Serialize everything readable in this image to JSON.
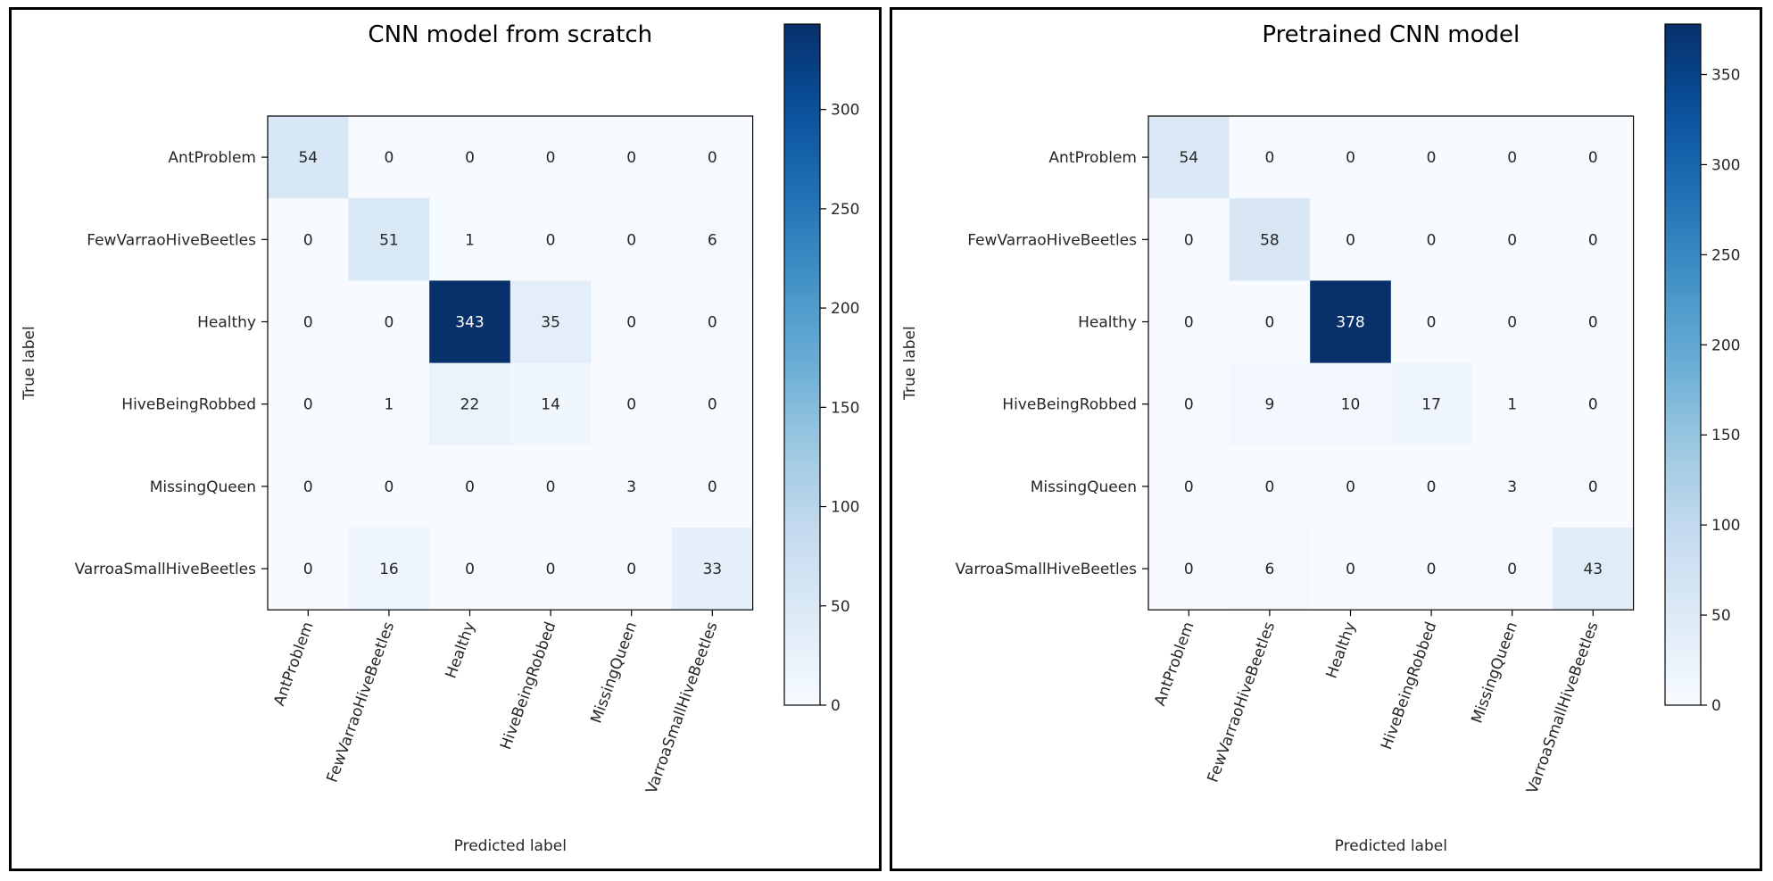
{
  "chart_data": [
    {
      "type": "heatmap",
      "title": "CNN model from scratch",
      "xlabel": "Predicted label",
      "ylabel": "True label",
      "x_categories": [
        "AntProblem",
        "FewVarraoHiveBeetles",
        "Healthy",
        "HiveBeingRobbed",
        "MissingQueen",
        "VarroaSmallHiveBeetles"
      ],
      "y_categories": [
        "AntProblem",
        "FewVarraoHiveBeetles",
        "Healthy",
        "HiveBeingRobbed",
        "MissingQueen",
        "VarroaSmallHiveBeetles"
      ],
      "values": [
        [
          54,
          0,
          0,
          0,
          0,
          0
        ],
        [
          0,
          51,
          1,
          0,
          0,
          6
        ],
        [
          0,
          0,
          343,
          35,
          0,
          0
        ],
        [
          0,
          1,
          22,
          14,
          0,
          0
        ],
        [
          0,
          0,
          0,
          0,
          3,
          0
        ],
        [
          0,
          16,
          0,
          0,
          0,
          33
        ]
      ],
      "colorscale": "Blues",
      "colorbar": {
        "range": [
          0,
          343
        ],
        "ticks": [
          0,
          50,
          100,
          150,
          200,
          250,
          300
        ]
      }
    },
    {
      "type": "heatmap",
      "title": "Pretrained CNN model",
      "xlabel": "Predicted label",
      "ylabel": "True label",
      "x_categories": [
        "AntProblem",
        "FewVarraoHiveBeetles",
        "Healthy",
        "HiveBeingRobbed",
        "MissingQueen",
        "VarroaSmallHiveBeetles"
      ],
      "y_categories": [
        "AntProblem",
        "FewVarraoHiveBeetles",
        "Healthy",
        "HiveBeingRobbed",
        "MissingQueen",
        "VarroaSmallHiveBeetles"
      ],
      "values": [
        [
          54,
          0,
          0,
          0,
          0,
          0
        ],
        [
          0,
          58,
          0,
          0,
          0,
          0
        ],
        [
          0,
          0,
          378,
          0,
          0,
          0
        ],
        [
          0,
          9,
          10,
          17,
          1,
          0
        ],
        [
          0,
          0,
          0,
          0,
          3,
          0
        ],
        [
          0,
          6,
          0,
          0,
          0,
          43
        ]
      ],
      "colorscale": "Blues",
      "colorbar": {
        "range": [
          0,
          378
        ],
        "ticks": [
          0,
          50,
          100,
          150,
          200,
          250,
          300,
          350
        ]
      }
    }
  ],
  "colors": {
    "low": "#f7fbff",
    "high": "#08306b",
    "text_dark": "#262626",
    "text_light": "#ffffff"
  }
}
